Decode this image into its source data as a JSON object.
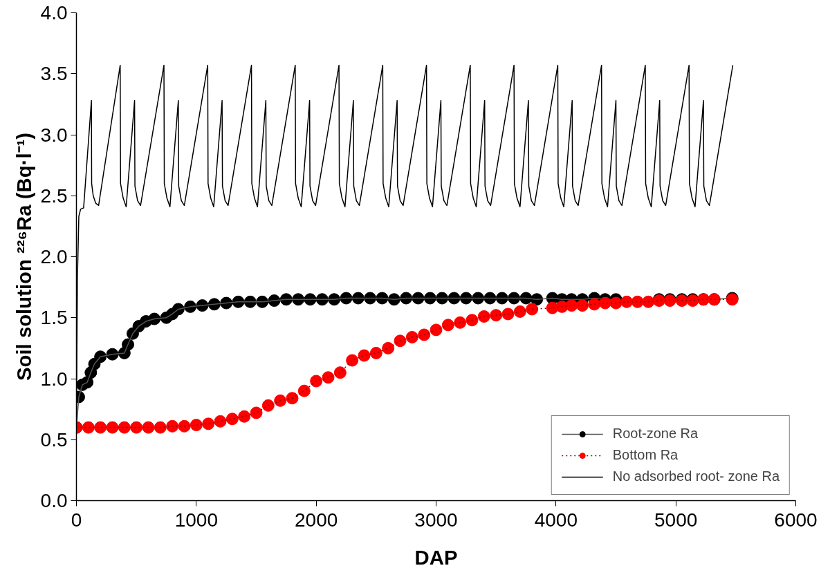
{
  "chart_data": {
    "type": "line",
    "xlabel": "DAP",
    "ylabel": "Soil solution ²²⁶Ra (Bq·l⁻¹)",
    "xlim": [
      0,
      6000
    ],
    "xticks": [
      0,
      1000,
      2000,
      3000,
      4000,
      5000,
      6000
    ],
    "ylim": [
      0,
      4
    ],
    "yticks": [
      {
        "value": 0,
        "label": "0.0"
      },
      {
        "value": 0.5,
        "label": "0.5"
      },
      {
        "value": 1,
        "label": "1.0"
      },
      {
        "value": 1.5,
        "label": "1.5"
      },
      {
        "value": 2,
        "label": "2.0"
      },
      {
        "value": 2.5,
        "label": "2.5"
      },
      {
        "value": 3,
        "label": "3.0"
      },
      {
        "value": 3.5,
        "label": "3.5"
      },
      {
        "value": 4,
        "label": "4.0"
      }
    ],
    "grid": false,
    "legend": "bottom right",
    "series": [
      {
        "name": "Root-zone Ra",
        "color": "#000000",
        "marker": "circle",
        "line_style": "solid",
        "x": [
          0,
          20,
          50,
          90,
          120,
          150,
          200,
          300,
          400,
          430,
          470,
          520,
          580,
          650,
          750,
          800,
          850,
          950,
          1050,
          1150,
          1250,
          1350,
          1450,
          1550,
          1650,
          1750,
          1850,
          1950,
          2050,
          2150,
          2250,
          2350,
          2450,
          2550,
          2650,
          2750,
          2850,
          2950,
          3050,
          3150,
          3250,
          3350,
          3450,
          3550,
          3650,
          3750,
          3840,
          3970,
          4050,
          4130,
          4220,
          4320,
          4410,
          4500,
          4590,
          4680,
          4770,
          4860,
          4950,
          5050,
          5140,
          5230,
          5320,
          5470
        ],
        "values": [
          0.6,
          0.85,
          0.95,
          0.97,
          1.05,
          1.12,
          1.18,
          1.2,
          1.21,
          1.28,
          1.37,
          1.43,
          1.47,
          1.49,
          1.5,
          1.53,
          1.57,
          1.59,
          1.6,
          1.61,
          1.62,
          1.63,
          1.63,
          1.63,
          1.64,
          1.65,
          1.65,
          1.65,
          1.65,
          1.65,
          1.66,
          1.66,
          1.66,
          1.66,
          1.65,
          1.66,
          1.66,
          1.66,
          1.66,
          1.66,
          1.66,
          1.66,
          1.66,
          1.66,
          1.66,
          1.66,
          1.65,
          1.66,
          1.65,
          1.65,
          1.65,
          1.66,
          1.65,
          1.65,
          null,
          null,
          null,
          1.65,
          1.65,
          1.65,
          1.65,
          1.65,
          1.65,
          1.66
        ]
      },
      {
        "name": "Bottom Ra",
        "color": "#ff0000",
        "marker": "circle",
        "line_style": "dotted",
        "x": [
          0,
          100,
          200,
          300,
          400,
          500,
          600,
          700,
          800,
          900,
          1000,
          1100,
          1200,
          1300,
          1400,
          1500,
          1600,
          1700,
          1800,
          1900,
          2000,
          2100,
          2200,
          2300,
          2400,
          2500,
          2600,
          2700,
          2800,
          2900,
          3000,
          3100,
          3200,
          3300,
          3400,
          3500,
          3600,
          3700,
          3800,
          3970,
          4050,
          4130,
          4220,
          4320,
          4410,
          4500,
          4590,
          4680,
          4770,
          4860,
          4950,
          5050,
          5140,
          5230,
          5320,
          5470
        ],
        "values": [
          0.6,
          0.6,
          0.6,
          0.6,
          0.6,
          0.6,
          0.6,
          0.6,
          0.61,
          0.61,
          0.62,
          0.63,
          0.65,
          0.67,
          0.69,
          0.72,
          0.78,
          0.82,
          0.84,
          0.9,
          0.98,
          1.01,
          1.05,
          1.15,
          1.19,
          1.21,
          1.25,
          1.31,
          1.34,
          1.36,
          1.4,
          1.44,
          1.46,
          1.48,
          1.51,
          1.52,
          1.53,
          1.55,
          1.57,
          1.58,
          1.59,
          1.6,
          1.6,
          1.61,
          1.62,
          1.62,
          1.63,
          1.63,
          1.63,
          1.64,
          1.64,
          1.64,
          1.64,
          1.65,
          1.65,
          1.65
        ]
      },
      {
        "name": "No adsorbed root- zone Ra",
        "color": "#000000",
        "marker": "none",
        "line_style": "solid",
        "x": [
          0,
          8,
          20,
          35,
          60,
          125,
          127,
          140,
          160,
          185,
          365,
          368,
          390,
          415,
          485,
          488,
          510,
          535,
          730,
          733,
          755,
          780,
          850,
          853,
          875,
          900,
          1095,
          1098,
          1120,
          1145,
          1215,
          1218,
          1240,
          1265,
          1460,
          1463,
          1485,
          1510,
          1580,
          1583,
          1605,
          1630,
          1825,
          1828,
          1850,
          1875,
          1945,
          1948,
          1970,
          1995,
          2190,
          2193,
          2215,
          2240,
          2310,
          2313,
          2335,
          2360,
          2555,
          2558,
          2580,
          2605,
          2675,
          2678,
          2700,
          2725,
          2920,
          2923,
          2945,
          2970,
          3040,
          3043,
          3065,
          3090,
          3285,
          3288,
          3310,
          3335,
          3405,
          3408,
          3430,
          3455,
          3650,
          3653,
          3675,
          3700,
          3770,
          3773,
          3795,
          3820,
          4015,
          4018,
          4040,
          4065,
          4135,
          4138,
          4160,
          4185,
          4380,
          4383,
          4405,
          4430,
          4500,
          4503,
          4525,
          4550,
          4745,
          4748,
          4770,
          4795,
          4865,
          4868,
          4890,
          4915,
          5110,
          5113,
          5135,
          5160,
          5230,
          5233,
          5255,
          5280,
          5475
        ],
        "values": [
          0.6,
          1.8,
          2.33,
          2.39,
          2.4,
          3.28,
          2.6,
          2.5,
          2.44,
          2.42,
          3.57,
          2.6,
          2.48,
          2.41,
          3.28,
          2.58,
          2.46,
          2.42,
          3.57,
          2.6,
          2.48,
          2.41,
          3.28,
          2.58,
          2.46,
          2.42,
          3.57,
          2.6,
          2.48,
          2.41,
          3.28,
          2.58,
          2.46,
          2.42,
          3.57,
          2.6,
          2.48,
          2.41,
          3.28,
          2.58,
          2.46,
          2.42,
          3.57,
          2.6,
          2.48,
          2.41,
          3.28,
          2.58,
          2.46,
          2.42,
          3.57,
          2.6,
          2.48,
          2.41,
          3.28,
          2.58,
          2.46,
          2.42,
          3.57,
          2.6,
          2.48,
          2.41,
          3.28,
          2.58,
          2.46,
          2.42,
          3.57,
          2.6,
          2.48,
          2.41,
          3.28,
          2.58,
          2.46,
          2.42,
          3.57,
          2.6,
          2.48,
          2.41,
          3.28,
          2.58,
          2.46,
          2.42,
          3.57,
          2.6,
          2.48,
          2.41,
          3.28,
          2.58,
          2.46,
          2.42,
          3.57,
          2.6,
          2.48,
          2.41,
          3.28,
          2.58,
          2.46,
          2.42,
          3.57,
          2.6,
          2.48,
          2.41,
          3.28,
          2.58,
          2.46,
          2.42,
          3.57,
          2.6,
          2.48,
          2.41,
          3.28,
          2.58,
          2.46,
          2.42,
          3.57,
          2.6,
          2.48,
          2.41,
          3.28,
          2.58,
          2.46,
          2.42,
          3.57
        ]
      }
    ]
  }
}
